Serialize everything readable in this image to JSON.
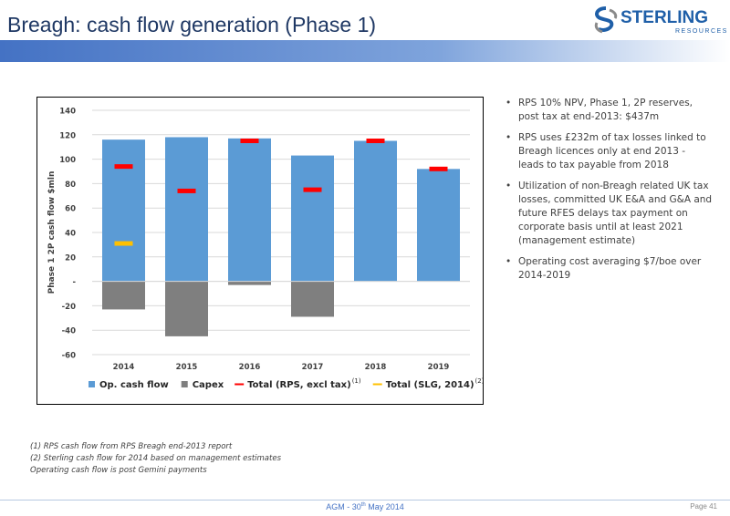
{
  "header": {
    "title": "Breagh: cash flow generation (Phase 1)",
    "logo_word": "STERLING",
    "logo_sub": "RESOURCES",
    "accent_color": "#4472c4"
  },
  "bullets": [
    "RPS 10% NPV, Phase 1, 2P reserves, post tax at end-2013: $437m",
    "RPS uses £232m of tax losses linked to Breagh licences only at end 2013 - leads to tax payable from 2018",
    "Utilization of non-Breagh related UK tax losses, committed UK E&A and G&A and future RFES delays tax payment on corporate basis until at least 2021 (management estimate)",
    "Operating cost averaging $7/boe over 2014-2019"
  ],
  "footnotes": [
    "(1)  RPS cash flow from RPS Breagh end-2013 report",
    "(2)  Sterling cash flow for 2014 based on management estimates",
    "Operating cash flow is post Gemini payments"
  ],
  "footer": {
    "center_prefix": "AGM - 30",
    "center_sup": "th",
    "center_suffix": " May 2014",
    "page": "Page 41"
  },
  "chart_data": {
    "type": "bar",
    "categories": [
      "2014",
      "2015",
      "2016",
      "2017",
      "2018",
      "2019"
    ],
    "ylabel": "Phase 1 2P cash flow $mln",
    "ylim": [
      -60,
      140
    ],
    "yticks": [
      -60,
      -40,
      -20,
      0,
      20,
      40,
      60,
      80,
      100,
      120,
      140
    ],
    "ytick_labels": [
      "-60",
      "-40",
      "-20",
      "-",
      "20",
      "40",
      "60",
      "80",
      "100",
      "120",
      "140"
    ],
    "grid": true,
    "legend_position": "bottom",
    "series": [
      {
        "name": "Op. cash flow",
        "kind": "bar",
        "color": "#5b9bd5",
        "values": [
          116,
          118,
          117,
          103,
          115,
          92
        ]
      },
      {
        "name": "Capex",
        "kind": "bar",
        "color": "#7f7f7f",
        "values": [
          -23,
          -45,
          -3,
          -29,
          0,
          0
        ]
      },
      {
        "name": "Total (RPS, excl tax)",
        "kind": "marker",
        "color": "#ff0000",
        "sup": "(1)",
        "values": [
          94,
          74,
          115,
          75,
          115,
          92
        ]
      },
      {
        "name": "Total (SLG, 2014)",
        "kind": "marker",
        "color": "#ffc000",
        "sup": "(2)",
        "values": [
          31,
          null,
          null,
          null,
          null,
          null
        ]
      }
    ]
  }
}
